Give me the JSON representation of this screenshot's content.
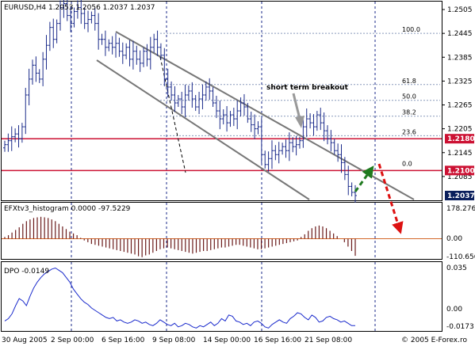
{
  "chart_data": [
    {
      "type": "ohlc",
      "title": "EURUSD,H4  1.2053 1.2056 1.2037 1.2037",
      "symbol": "EURUSD",
      "timeframe": "H4",
      "ohlc_header": {
        "open": 1.2053,
        "high": 1.2056,
        "low": 1.2037,
        "close": 1.2037
      },
      "ylim": [
        1.2025,
        1.2525
      ],
      "y_ticks": [
        1.2505,
        1.2445,
        1.2385,
        1.2325,
        1.2265,
        1.2205,
        1.2145,
        1.2085
      ],
      "y_tick_labels": [
        "1.2505",
        "1.2445",
        "1.2385",
        "1.2325",
        "1.2265",
        "1.2205",
        "1.2145",
        "1.2085"
      ],
      "price_labels": [
        {
          "value": 1.218,
          "text": "1.2180",
          "color": "#cc1133"
        },
        {
          "value": 1.21,
          "text": "1.2100",
          "color": "#cc1133"
        },
        {
          "value": 1.2037,
          "text": "1.2037",
          "color": "#0a1f5c"
        }
      ],
      "horizontal_lines": [
        {
          "value": 1.218,
          "color": "#cc1133"
        },
        {
          "value": 1.21,
          "color": "#cc1133"
        }
      ],
      "fibonacci": {
        "high": 1.2445,
        "low": 1.2108,
        "levels": [
          "100.0",
          "61.8",
          "50.0",
          "38.2",
          "23.6",
          "0.0"
        ],
        "ratios": [
          1.0,
          0.618,
          0.5,
          0.382,
          0.236,
          0.0
        ]
      },
      "annotations": [
        {
          "text": "short term breakout"
        }
      ],
      "closes": [
        1.2165,
        1.2175,
        1.2185,
        1.2192,
        1.218,
        1.221,
        1.229,
        1.233,
        1.2365,
        1.2345,
        1.233,
        1.238,
        1.2415,
        1.246,
        1.243,
        1.247,
        1.251,
        1.252,
        1.249,
        1.247,
        1.25,
        1.251,
        1.2495,
        1.247,
        1.248,
        1.249,
        1.247,
        1.243,
        1.243,
        1.241,
        1.242,
        1.241,
        1.242,
        1.24,
        1.239,
        1.241,
        1.238,
        1.24,
        1.238,
        1.237,
        1.24,
        1.238,
        1.241,
        1.243,
        1.241,
        1.239,
        1.233,
        1.231,
        1.229,
        1.227,
        1.228,
        1.226,
        1.229,
        1.23,
        1.228,
        1.226,
        1.228,
        1.229,
        1.231,
        1.23,
        1.227,
        1.225,
        1.223,
        1.224,
        1.222,
        1.224,
        1.223,
        1.225,
        1.227,
        1.226,
        1.223,
        1.2215,
        1.2205,
        1.221,
        1.214,
        1.2115,
        1.213,
        1.215,
        1.214,
        1.215,
        1.216,
        1.215,
        1.217,
        1.216,
        1.2165,
        1.2175,
        1.221,
        1.223,
        1.222,
        1.221,
        1.224,
        1.222,
        1.22,
        1.218,
        1.217,
        1.215,
        1.214,
        1.212,
        1.209,
        1.206,
        1.2045,
        1.2037
      ],
      "arrows": [
        {
          "direction": "up",
          "color": "#1f7a1f"
        },
        {
          "direction": "down",
          "color": "#dd1111"
        }
      ]
    },
    {
      "type": "histogram",
      "title": "EFXtv3_histogram 0.0000 -97.5229",
      "name": "EFXtv3_histogram",
      "ylim": [
        -110.656,
        178.2762
      ],
      "y_tick_labels": [
        "178.2762",
        "0.00",
        "-110.656"
      ],
      "values": [
        10,
        20,
        35,
        50,
        65,
        85,
        100,
        110,
        118,
        122,
        125,
        122,
        118,
        110,
        100,
        85,
        70,
        55,
        40,
        30,
        20,
        5,
        -10,
        -20,
        -30,
        -35,
        -40,
        -45,
        -50,
        -55,
        -60,
        -65,
        -70,
        -75,
        -80,
        -85,
        -90,
        -100,
        -105,
        -95,
        -90,
        -80,
        -70,
        -60,
        -55,
        -50,
        -55,
        -60,
        -65,
        -70,
        -75,
        -80,
        -85,
        -80,
        -75,
        -70,
        -70,
        -65,
        -60,
        -55,
        -50,
        -50,
        -45,
        -40,
        -35,
        -35,
        -40,
        -45,
        -50,
        -55,
        -60,
        -60,
        -55,
        -50,
        -45,
        -40,
        -35,
        -30,
        -25,
        -20,
        -15,
        -10,
        10,
        25,
        45,
        60,
        70,
        75,
        70,
        60,
        45,
        30,
        15,
        0,
        -20,
        -45,
        -70,
        -97.5229
      ]
    },
    {
      "type": "line",
      "title": "DPO -0.0149",
      "name": "DPO",
      "ylim": [
        -0.0195,
        0.037
      ],
      "y_tick_labels": [
        "0.035",
        "0.00",
        "-0.0173"
      ],
      "y_tick_values": [
        0.035,
        0.0,
        -0.0173
      ],
      "values": [
        -0.011,
        -0.009,
        -0.005,
        0.002,
        0.008,
        0.006,
        0.002,
        0.01,
        0.017,
        0.022,
        0.026,
        0.029,
        0.031,
        0.033,
        0.034,
        0.032,
        0.03,
        0.026,
        0.022,
        0.016,
        0.012,
        0.008,
        0.005,
        0.003,
        0.0,
        -0.002,
        -0.004,
        -0.006,
        -0.008,
        -0.009,
        -0.008,
        -0.011,
        -0.01,
        -0.012,
        -0.013,
        -0.012,
        -0.01,
        -0.011,
        -0.013,
        -0.012,
        -0.014,
        -0.015,
        -0.013,
        -0.01,
        -0.012,
        -0.014,
        -0.015,
        -0.013,
        -0.016,
        -0.015,
        -0.013,
        -0.014,
        -0.016,
        -0.017,
        -0.015,
        -0.016,
        -0.014,
        -0.012,
        -0.015,
        -0.013,
        -0.009,
        -0.011,
        -0.006,
        -0.007,
        -0.011,
        -0.012,
        -0.014,
        -0.013,
        -0.015,
        -0.012,
        -0.011,
        -0.013,
        -0.016,
        -0.017,
        -0.014,
        -0.012,
        -0.01,
        -0.012,
        -0.013,
        -0.009,
        -0.007,
        -0.004,
        -0.005,
        -0.008,
        -0.01,
        -0.006,
        -0.008,
        -0.012,
        -0.011,
        -0.008,
        -0.007,
        -0.009,
        -0.01,
        -0.012,
        -0.011,
        -0.013,
        -0.015,
        -0.0149
      ]
    }
  ],
  "x_axis_labels": [
    "30 Aug 2005",
    "2 Sep 00:00",
    "6 Sep 16:00",
    "9 Sep 08:00",
    "14 Sep 00:00",
    "16 Sep 16:00",
    "21 Sep 08:00"
  ],
  "copyright": "© 2005 E-Forex.ro",
  "colors": {
    "candle": "#1a2a8a",
    "grid": "#1a2a8a",
    "channel": "#777777",
    "fib": "#8899bb",
    "support": "#cc1133",
    "histogram": "#6a1a1a",
    "zero_line": "#d4682a",
    "dpo": "#1a2acc"
  }
}
